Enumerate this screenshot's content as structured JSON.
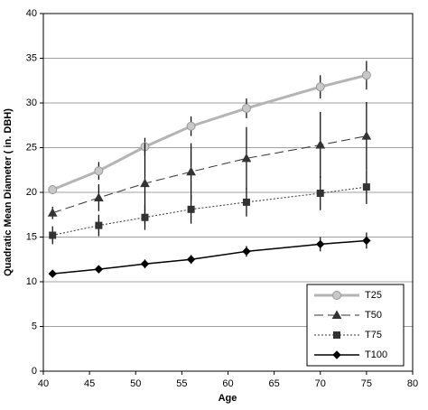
{
  "chart_data": {
    "type": "line",
    "x_label": "Age",
    "y_label": "Quadratic Mean Diameter ( in. DBH)",
    "x": [
      41,
      46,
      51,
      56,
      62,
      70,
      75
    ],
    "xlim": [
      40,
      80
    ],
    "xticks": [
      40,
      45,
      50,
      55,
      60,
      65,
      70,
      75,
      80
    ],
    "ylim": [
      0,
      40
    ],
    "yticks": [
      0,
      5,
      10,
      15,
      20,
      25,
      30,
      35,
      40
    ],
    "grid": true,
    "legend": "bottom-right",
    "series": [
      {
        "name": "T25",
        "color": "#b4b4b4",
        "marker": "circle",
        "line_style": "solid-thick",
        "values": [
          20.3,
          22.4,
          25.1,
          27.4,
          29.4,
          31.8,
          33.1
        ],
        "errors": [
          0.5,
          1.0,
          1.0,
          1.1,
          1.1,
          1.3,
          1.6
        ]
      },
      {
        "name": "T50",
        "color": "#333333",
        "marker": "triangle",
        "line_style": "dashed",
        "values": [
          17.7,
          19.4,
          21.0,
          22.3,
          23.8,
          25.3,
          26.3
        ],
        "errors": [
          0.7,
          1.5,
          4.5,
          3.2,
          3.5,
          3.7,
          3.8
        ]
      },
      {
        "name": "T75",
        "color": "#333333",
        "marker": "square",
        "line_style": "dotted",
        "values": [
          15.2,
          16.3,
          17.2,
          18.1,
          18.9,
          19.9,
          20.6
        ],
        "errors": [
          1.0,
          1.2,
          1.4,
          1.6,
          1.6,
          1.9,
          1.9
        ]
      },
      {
        "name": "T100",
        "color": "#000000",
        "marker": "diamond",
        "line_style": "solid",
        "values": [
          10.9,
          11.4,
          12.0,
          12.5,
          13.4,
          14.2,
          14.6
        ],
        "errors": [
          0.3,
          0.3,
          0.5,
          0.5,
          0.6,
          0.8,
          0.9
        ]
      }
    ]
  }
}
